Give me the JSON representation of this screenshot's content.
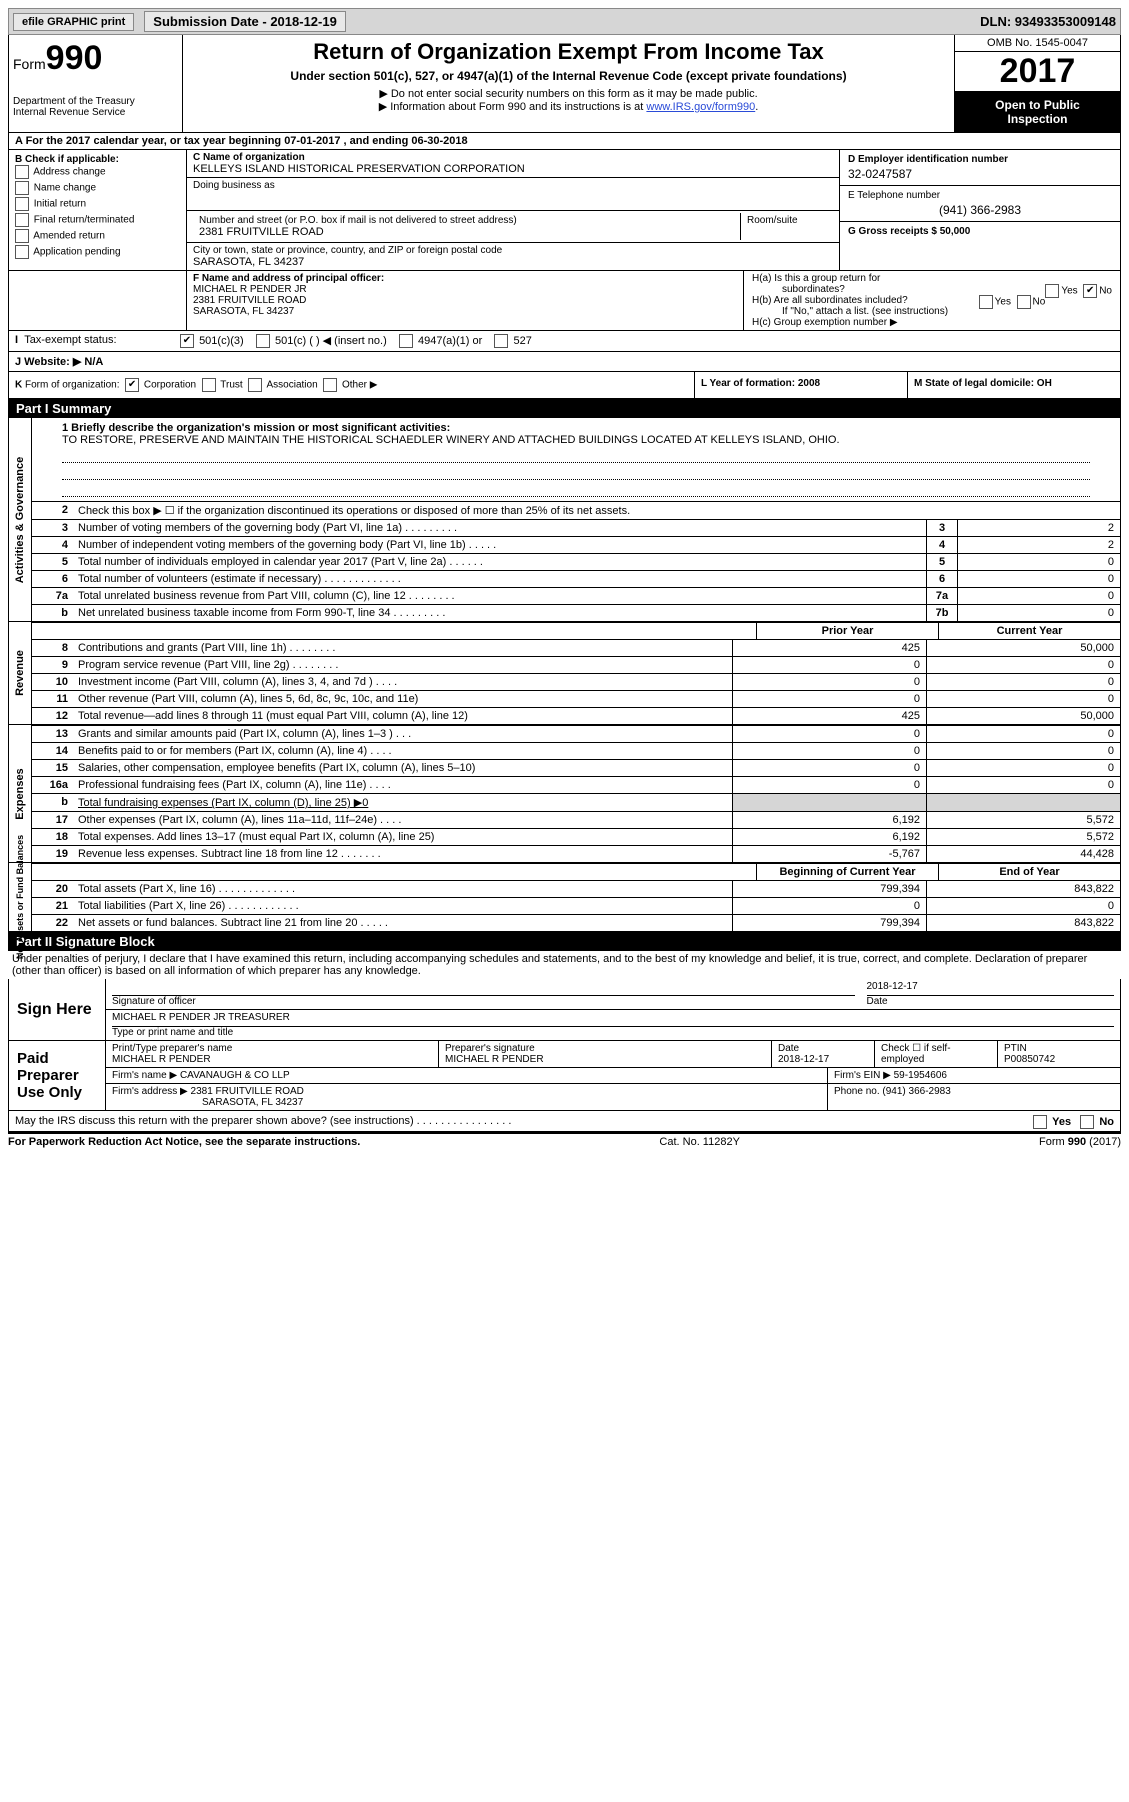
{
  "topbar": {
    "efile_btn": "efile GRAPHIC print",
    "submission_label": "Submission Date - 2018-12-19",
    "dln": "DLN: 93493353009148"
  },
  "header": {
    "form_label": "Form",
    "form_number": "990",
    "dept": "Department of the Treasury",
    "irs": "Internal Revenue Service",
    "main_title": "Return of Organization Exempt From Income Tax",
    "subtitle": "Under section 501(c), 527, or 4947(a)(1) of the Internal Revenue Code (except private foundations)",
    "line1": "▶ Do not enter social security numbers on this form as it may be made public.",
    "line2_pre": "▶ Information about Form 990 and its instructions is at ",
    "line2_link": "www.IRS.gov/form990",
    "omb": "OMB No. 1545-0047",
    "year": "2017",
    "inspection1": "Open to Public",
    "inspection2": "Inspection"
  },
  "row_a": "A  For the 2017 calendar year, or tax year beginning 07-01-2017   , and ending 06-30-2018",
  "col_b": {
    "header": "B Check if applicable:",
    "items": [
      "Address change",
      "Name change",
      "Initial return",
      "Final return/terminated",
      "Amended return",
      "Application pending"
    ]
  },
  "col_c": {
    "name_label": "C Name of organization",
    "name": "KELLEYS ISLAND HISTORICAL PRESERVATION CORPORATION",
    "dba_label": "Doing business as",
    "addr_label": "Number and street (or P.O. box if mail is not delivered to street address)",
    "addr": "2381 FRUITVILLE ROAD",
    "room_label": "Room/suite",
    "city_label": "City or town, state or province, country, and ZIP or foreign postal code",
    "city": "SARASOTA, FL  34237"
  },
  "col_d": {
    "label": "D Employer identification number",
    "value": "32-0247587"
  },
  "col_e": {
    "label": "E Telephone number",
    "value": "(941) 366-2983"
  },
  "col_g": {
    "label": "G Gross receipts $ 50,000"
  },
  "col_f": {
    "label": "F Name and address of principal officer:",
    "name": "MICHAEL R PENDER JR",
    "addr": "2381 FRUITVILLE ROAD",
    "city": "SARASOTA, FL  34237"
  },
  "col_h": {
    "ha": "H(a)  Is this a group return for",
    "ha2": "subordinates?",
    "hb": "H(b)  Are all subordinates included?",
    "hb_note": "If \"No,\" attach a list. (see instructions)",
    "hc": "H(c)  Group exemption number ▶",
    "yes": "Yes",
    "no": "No"
  },
  "row_i": {
    "label": "I  Tax-exempt status:",
    "opts": [
      "501(c)(3)",
      "501(c) (  ) ◀ (insert no.)",
      "4947(a)(1) or",
      "527"
    ]
  },
  "row_j": "J  Website: ▶   N/A",
  "row_k": {
    "label": "K Form of organization:",
    "opts": [
      "Corporation",
      "Trust",
      "Association",
      "Other ▶"
    ]
  },
  "row_l": "L Year of formation: 2008",
  "row_m": "M State of legal domicile: OH",
  "part1_label": "Part I     Summary",
  "mission": {
    "label": "1  Briefly describe the organization's mission or most significant activities:",
    "text": "TO RESTORE, PRESERVE AND MAINTAIN THE HISTORICAL SCHAEDLER WINERY AND ATTACHED BUILDINGS LOCATED AT KELLEYS ISLAND, OHIO."
  },
  "vtabs": {
    "gov": "Activities & Governance",
    "rev": "Revenue",
    "exp": "Expenses",
    "net": "Net Assets or Fund Balances"
  },
  "lines_gov": [
    {
      "n": "2",
      "d": "Check this box ▶ ☐  if the organization discontinued its operations or disposed of more than 25% of its net assets.",
      "single": true
    },
    {
      "n": "3",
      "d": "Number of voting members of the governing body (Part VI, line 1a)  .   .   .   .   .   .   .   .   .",
      "c": "3",
      "v": "2"
    },
    {
      "n": "4",
      "d": "Number of independent voting members of the governing body (Part VI, line 1b)  .   .   .   .   .",
      "c": "4",
      "v": "2"
    },
    {
      "n": "5",
      "d": "Total number of individuals employed in calendar year 2017 (Part V, line 2a)  .   .   .   .   .   .",
      "c": "5",
      "v": "0"
    },
    {
      "n": "6",
      "d": "Total number of volunteers (estimate if necessary)  .   .   .   .   .   .   .   .   .   .   .   .   .",
      "c": "6",
      "v": "0"
    },
    {
      "n": "7a",
      "d": "Total unrelated business revenue from Part VIII, column (C), line 12  .   .   .   .   .   .   .   .",
      "c": "7a",
      "v": "0"
    },
    {
      "n": "b",
      "d": "Net unrelated business taxable income from Form 990-T, line 34  .   .   .   .   .   .   .   .   .",
      "c": "7b",
      "v": "0"
    }
  ],
  "prior_year_label": "Prior Year",
  "current_year_label": "Current Year",
  "lines_rev": [
    {
      "n": "8",
      "d": "Contributions and grants (Part VIII, line 1h)  .   .   .   .   .   .   .   .",
      "p": "425",
      "c": "50,000"
    },
    {
      "n": "9",
      "d": "Program service revenue (Part VIII, line 2g)  .   .   .   .   .   .   .   .",
      "p": "0",
      "c": "0"
    },
    {
      "n": "10",
      "d": "Investment income (Part VIII, column (A), lines 3, 4, and 7d )  .   .   .   .",
      "p": "0",
      "c": "0"
    },
    {
      "n": "11",
      "d": "Other revenue (Part VIII, column (A), lines 5, 6d, 8c, 9c, 10c, and 11e)",
      "p": "0",
      "c": "0"
    },
    {
      "n": "12",
      "d": "Total revenue—add lines 8 through 11 (must equal Part VIII, column (A), line 12)",
      "p": "425",
      "c": "50,000"
    }
  ],
  "lines_exp": [
    {
      "n": "13",
      "d": "Grants and similar amounts paid (Part IX, column (A), lines 1–3 )  .   .   .",
      "p": "0",
      "c": "0"
    },
    {
      "n": "14",
      "d": "Benefits paid to or for members (Part IX, column (A), line 4)  .   .   .   .",
      "p": "0",
      "c": "0"
    },
    {
      "n": "15",
      "d": "Salaries, other compensation, employee benefits (Part IX, column (A), lines 5–10)",
      "p": "0",
      "c": "0"
    },
    {
      "n": "16a",
      "d": "Professional fundraising fees (Part IX, column (A), line 11e)  .   .   .   .",
      "p": "0",
      "c": "0"
    },
    {
      "n": "b",
      "d": "Total fundraising expenses (Part IX, column (D), line 25) ▶0",
      "grey": true
    },
    {
      "n": "17",
      "d": "Other expenses (Part IX, column (A), lines 11a–11d, 11f–24e)  .   .   .   .",
      "p": "6,192",
      "c": "5,572"
    },
    {
      "n": "18",
      "d": "Total expenses. Add lines 13–17 (must equal Part IX, column (A), line 25)",
      "p": "6,192",
      "c": "5,572"
    },
    {
      "n": "19",
      "d": "Revenue less expenses. Subtract line 18 from line 12  .   .   .   .   .   .   .",
      "p": "-5,767",
      "c": "44,428"
    }
  ],
  "beg_year_label": "Beginning of Current Year",
  "end_year_label": "End of Year",
  "lines_net": [
    {
      "n": "20",
      "d": "Total assets (Part X, line 16)  .   .   .   .   .   .   .   .   .   .   .   .   .",
      "p": "799,394",
      "c": "843,822"
    },
    {
      "n": "21",
      "d": "Total liabilities (Part X, line 26)  .   .   .   .   .   .   .   .   .   .   .   .",
      "p": "0",
      "c": "0"
    },
    {
      "n": "22",
      "d": "Net assets or fund balances. Subtract line 21 from line 20  .   .   .   .   .",
      "p": "799,394",
      "c": "843,822"
    }
  ],
  "part2_label": "Part II     Signature Block",
  "sig_intro": "Under penalties of perjury, I declare that I have examined this return, including accompanying schedules and statements, and to the best of my knowledge and belief, it is true, correct, and complete. Declaration of preparer (other than officer) is based on all information of which preparer has any knowledge.",
  "sign_here": "Sign Here",
  "sig_of_officer": "Signature of officer",
  "sig_date_label": "Date",
  "sig_date": "2018-12-17",
  "officer_name": "MICHAEL R PENDER JR  TREASURER",
  "type_name_label": "Type or print name and title",
  "paid_label": "Paid Preparer Use Only",
  "prep": {
    "name_label": "Print/Type preparer's name",
    "name": "MICHAEL R PENDER",
    "sig_label": "Preparer's signature",
    "sig": "MICHAEL R PENDER",
    "date_label": "Date",
    "date": "2018-12-17",
    "check_label": "Check ☐ if self-employed",
    "ptin_label": "PTIN",
    "ptin": "P00850742",
    "firm_name_label": "Firm's name    ▶",
    "firm_name": "CAVANAUGH & CO LLP",
    "firm_ein_label": "Firm's EIN ▶",
    "firm_ein": "59-1954606",
    "firm_addr_label": "Firm's address ▶",
    "firm_addr": "2381 FRUITVILLE ROAD",
    "firm_city": "SARASOTA, FL  34237",
    "phone_label": "Phone no.",
    "phone": "(941) 366-2983"
  },
  "discuss": "May the IRS discuss this return with the preparer shown above? (see instructions)   .   .   .   .   .   .   .   .   .   .   .   .   .   .   .   .",
  "footer": {
    "left": "For Paperwork Reduction Act Notice, see the separate instructions.",
    "mid": "Cat. No. 11282Y",
    "right_pre": "Form ",
    "right_bold": "990",
    "right_post": " (2017)"
  }
}
